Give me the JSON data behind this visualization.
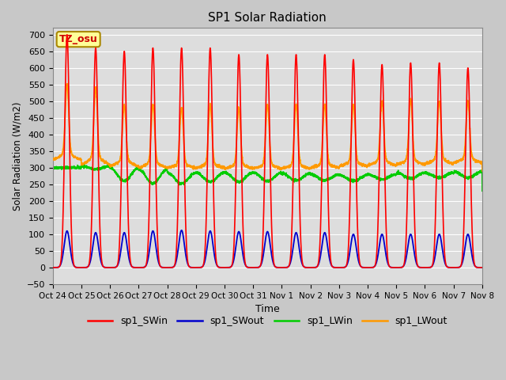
{
  "title": "SP1 Solar Radiation",
  "xlabel": "Time",
  "ylabel": "Solar Radiation (W/m2)",
  "ylim": [
    -50,
    720
  ],
  "annotation_text": "TZ_osu",
  "annotation_color": "#cc0000",
  "annotation_bg": "#ffff99",
  "annotation_border": "#aa8800",
  "colors": {
    "sp1_SWin": "#ff0000",
    "sp1_SWout": "#0000cc",
    "sp1_LWin": "#00cc00",
    "sp1_LWout": "#ff9900"
  },
  "xtick_labels": [
    "Oct 24",
    "Oct 25",
    "Oct 26",
    "Oct 27",
    "Oct 28",
    "Oct 29",
    "Oct 30",
    "Oct 31",
    "Nov 1",
    "Nov 2",
    "Nov 3",
    "Nov 4",
    "Nov 5",
    "Nov 6",
    "Nov 7",
    "Nov 8"
  ],
  "sw_in_peaks": [
    700,
    660,
    650,
    660,
    660,
    660,
    640,
    640,
    640,
    640,
    625,
    610,
    615,
    615,
    600
  ],
  "sw_out_peaks": [
    110,
    105,
    105,
    110,
    112,
    110,
    108,
    108,
    105,
    105,
    100,
    100,
    100,
    100,
    100
  ],
  "lw_out_peaks": [
    550,
    540,
    490,
    490,
    480,
    490,
    480,
    490,
    490,
    490,
    490,
    500,
    505,
    500,
    500
  ],
  "num_days": 15,
  "background_color": "#dddddd",
  "plot_bg": "#dddddd",
  "grid_color": "#ffffff",
  "figsize": [
    6.4,
    4.8
  ],
  "dpi": 100
}
